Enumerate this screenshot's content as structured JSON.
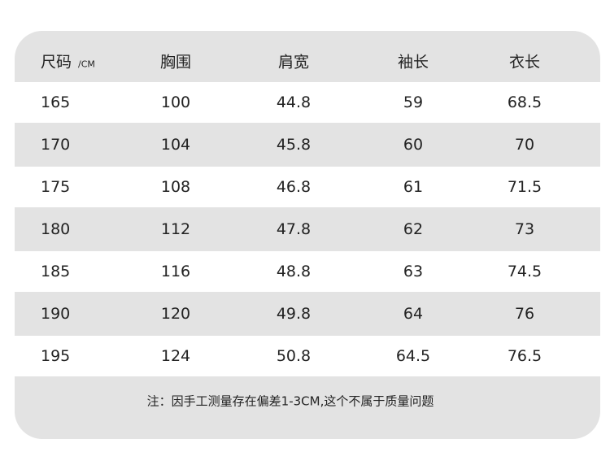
{
  "table": {
    "header": [
      "尺码",
      "胸围",
      "肩宽",
      "袖长",
      "衣长"
    ],
    "unit": "/CM",
    "rows": [
      [
        165,
        100,
        44.8,
        59,
        68.5
      ],
      [
        170,
        104,
        45.8,
        60,
        70
      ],
      [
        175,
        108,
        46.8,
        61,
        71.5
      ],
      [
        180,
        112,
        47.8,
        62,
        73
      ],
      [
        185,
        116,
        48.8,
        63,
        74.5
      ],
      [
        190,
        120,
        49.8,
        64,
        76
      ],
      [
        195,
        124,
        50.8,
        64.5,
        76.5
      ]
    ]
  },
  "note": "注：因手工测量存在偏差1-3CM,这个不属于质量问题"
}
